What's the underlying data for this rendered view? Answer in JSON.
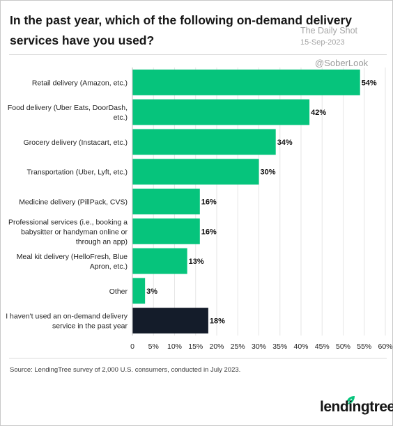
{
  "title": "In the past year, which of the following on-demand delivery services have you used?",
  "watermark": {
    "name": "The Daily Shot",
    "date": "15-Sep-2023",
    "handle": "@SoberLook"
  },
  "source": "Source: LendingTree survey of 2,000 U.S. consumers, conducted in July 2023.",
  "brand": "lendingtree",
  "chart_data": {
    "type": "bar",
    "orientation": "horizontal",
    "categories": [
      "Retail delivery (Amazon, etc.)",
      "Food delivery (Uber Eats, DoorDash, etc.)",
      "Grocery delivery (Instacart, etc.)",
      "Transportation (Uber, Lyft, etc.)",
      "Medicine delivery (PillPack, CVS)",
      "Professional services (i.e., booking a babysitter or handyman online or through an app)",
      "Meal kit delivery (HelloFresh, Blue Apron, etc.)",
      "Other",
      "I haven't used an on-demand delivery service in the past year"
    ],
    "category_lines": [
      [
        "Retail delivery (Amazon, etc.)"
      ],
      [
        "Food delivery (Uber Eats, DoorDash,",
        "etc.)"
      ],
      [
        "Grocery delivery (Instacart, etc.)"
      ],
      [
        "Transportation (Uber, Lyft, etc.)"
      ],
      [
        "Medicine delivery (PillPack, CVS)"
      ],
      [
        "Professional services (i.e., booking a",
        "babysitter or handyman online or",
        "through an app)"
      ],
      [
        "Meal kit delivery (HelloFresh, Blue",
        "Apron, etc.)"
      ],
      [
        "Other"
      ],
      [
        "I haven't used an on-demand delivery",
        "service in the past year"
      ]
    ],
    "values": [
      54,
      42,
      34,
      30,
      16,
      16,
      13,
      3,
      18
    ],
    "data_labels": [
      "54%",
      "42%",
      "34%",
      "30%",
      "16%",
      "16%",
      "13%",
      "3%",
      "18%"
    ],
    "bar_colors": [
      "#06c47c",
      "#06c47c",
      "#06c47c",
      "#06c47c",
      "#06c47c",
      "#06c47c",
      "#06c47c",
      "#06c47c",
      "#141c2a"
    ],
    "xlim": [
      0,
      60
    ],
    "x_ticks": [
      0,
      5,
      10,
      15,
      20,
      25,
      30,
      35,
      40,
      45,
      50,
      55,
      60
    ],
    "x_tick_labels": [
      "0",
      "5%",
      "10%",
      "15%",
      "20%",
      "25%",
      "30%",
      "35%",
      "40%",
      "45%",
      "50%",
      "55%",
      "60%"
    ],
    "grid": true
  }
}
